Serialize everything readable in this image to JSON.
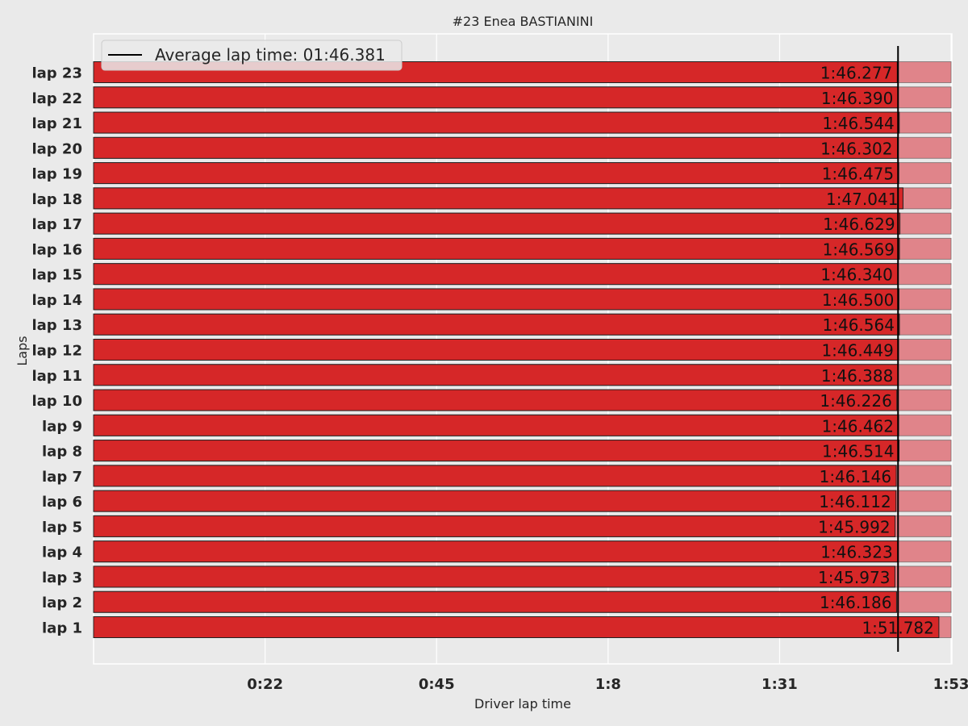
{
  "chart_data": {
    "type": "bar",
    "orientation": "horizontal",
    "title": "#23  Enea BASTIANINI",
    "xlabel": "Driver lap time",
    "ylabel": "Laps",
    "x_unit": "seconds",
    "xlim": [
      0,
      113.5
    ],
    "xticks": [
      {
        "value": 22.68,
        "label": "0:22"
      },
      {
        "value": 45.36,
        "label": "0:45"
      },
      {
        "value": 68.04,
        "label": "1:8"
      },
      {
        "value": 90.72,
        "label": "1:31"
      },
      {
        "value": 113.4,
        "label": "1:53"
      }
    ],
    "grid": true,
    "legend_position": "top-left",
    "categories": [
      "lap 1",
      "lap 2",
      "lap 3",
      "lap 4",
      "lap 5",
      "lap 6",
      "lap 7",
      "lap 8",
      "lap 9",
      "lap 10",
      "lap 11",
      "lap 12",
      "lap 13",
      "lap 14",
      "lap 15",
      "lap 16",
      "lap 17",
      "lap 18",
      "lap 19",
      "lap 20",
      "lap 21",
      "lap 22",
      "lap 23"
    ],
    "values": [
      111.782,
      106.186,
      105.973,
      106.323,
      105.992,
      106.112,
      106.146,
      106.514,
      106.462,
      106.226,
      106.388,
      106.449,
      106.564,
      106.5,
      106.34,
      106.569,
      106.629,
      107.041,
      106.475,
      106.302,
      106.544,
      106.39,
      106.277
    ],
    "value_labels": [
      "1:51.782",
      "1:46.186",
      "1:45.973",
      "1:46.323",
      "1:45.992",
      "1:46.112",
      "1:46.146",
      "1:46.514",
      "1:46.462",
      "1:46.226",
      "1:46.388",
      "1:46.449",
      "1:46.564",
      "1:46.500",
      "1:46.340",
      "1:46.569",
      "1:46.629",
      "1:47.041",
      "1:46.475",
      "1:46.302",
      "1:46.544",
      "1:46.390",
      "1:46.277"
    ],
    "background_bar_value": 113.4,
    "average": {
      "value": 106.381,
      "legend": "Average lap time: 01:46.381"
    },
    "colors": {
      "bar": "#d62728",
      "background_bar": "#e0848a",
      "average_line": "#000000",
      "plot_bg": "#eaeaea",
      "grid": "#ffffff"
    }
  }
}
